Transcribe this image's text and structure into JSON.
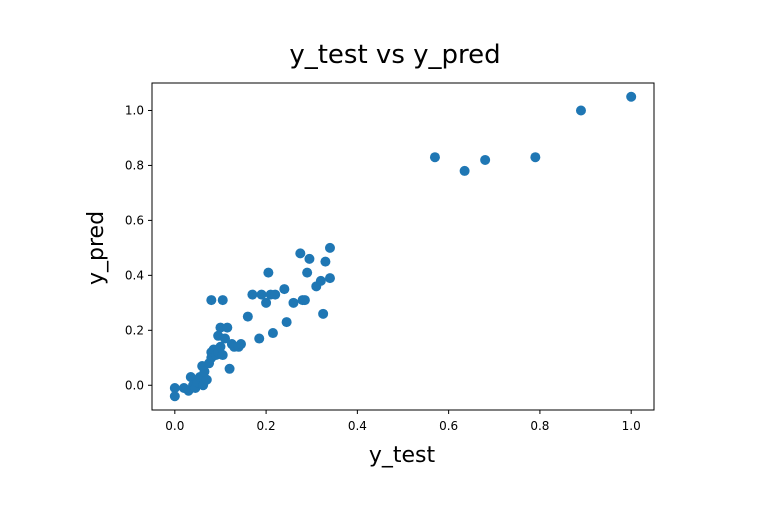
{
  "chart_data": {
    "type": "scatter",
    "title": "y_test vs y_pred",
    "xlabel": "y_test",
    "ylabel": "y_pred",
    "xlim": [
      -0.05,
      1.05
    ],
    "ylim": [
      -0.09,
      1.1
    ],
    "xticks": [
      0.0,
      0.2,
      0.4,
      0.6,
      0.8,
      1.0
    ],
    "xtick_labels": [
      "0.0",
      "0.2",
      "0.4",
      "0.6",
      "0.8",
      "1.0"
    ],
    "yticks": [
      0.0,
      0.2,
      0.4,
      0.6,
      0.8,
      1.0
    ],
    "ytick_labels": [
      "0.0",
      "0.2",
      "0.4",
      "0.6",
      "0.8",
      "1.0"
    ],
    "grid": false,
    "color": "#1f77b4",
    "x": [
      0.0,
      0.0,
      0.02,
      0.03,
      0.035,
      0.04,
      0.045,
      0.05,
      0.055,
      0.06,
      0.062,
      0.065,
      0.07,
      0.075,
      0.08,
      0.08,
      0.085,
      0.09,
      0.095,
      0.095,
      0.1,
      0.1,
      0.105,
      0.11,
      0.115,
      0.12,
      0.125,
      0.13,
      0.14,
      0.145,
      0.16,
      0.17,
      0.185,
      0.19,
      0.2,
      0.205,
      0.21,
      0.215,
      0.22,
      0.24,
      0.245,
      0.26,
      0.275,
      0.28,
      0.285,
      0.29,
      0.295,
      0.31,
      0.32,
      0.325,
      0.33,
      0.34,
      0.34,
      0.08,
      0.105,
      0.57,
      0.635,
      0.68,
      0.79,
      0.89,
      1.0
    ],
    "y": [
      -0.04,
      -0.01,
      -0.01,
      -0.02,
      0.03,
      0.0,
      -0.01,
      0.01,
      0.03,
      0.07,
      0.0,
      0.05,
      0.02,
      0.08,
      0.12,
      0.1,
      0.13,
      0.11,
      0.18,
      0.12,
      0.21,
      0.14,
      0.11,
      0.17,
      0.21,
      0.06,
      0.15,
      0.14,
      0.14,
      0.15,
      0.25,
      0.33,
      0.17,
      0.33,
      0.3,
      0.41,
      0.33,
      0.19,
      0.33,
      0.35,
      0.23,
      0.3,
      0.48,
      0.31,
      0.31,
      0.41,
      0.46,
      0.36,
      0.38,
      0.26,
      0.45,
      0.5,
      0.39,
      0.31,
      0.31,
      0.83,
      0.78,
      0.82,
      0.83,
      1.0,
      1.05
    ]
  }
}
